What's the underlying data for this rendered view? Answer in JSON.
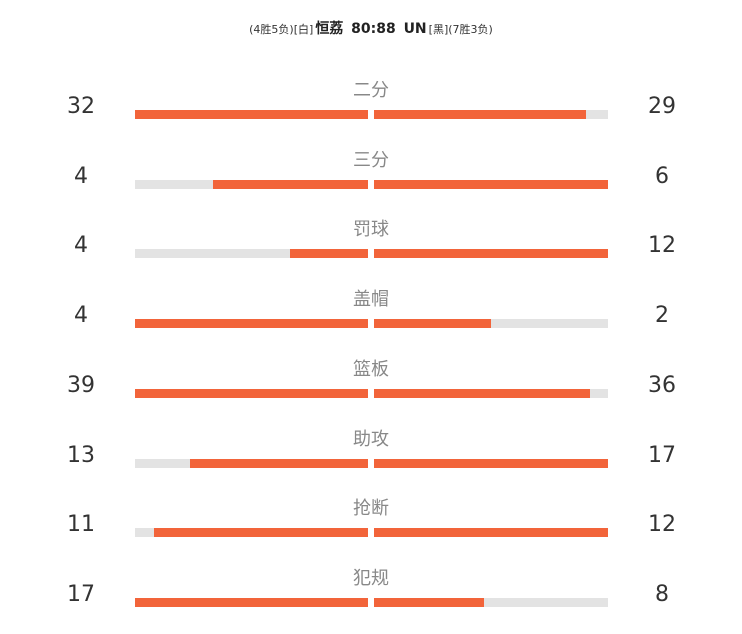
{
  "header": {
    "left_record": "(4胜5负)",
    "left_side": "[白]",
    "left_team": "恒荔",
    "score": "80:88",
    "right_team": "UN",
    "right_side": "[黑]",
    "right_record": "(7胜3负)"
  },
  "colors": {
    "accent": "#f2643a",
    "track": "#e3e3e3",
    "label": "#888888"
  },
  "chart_data": {
    "type": "bar",
    "categories": [
      "二分",
      "三分",
      "罚球",
      "盖帽",
      "篮板",
      "助攻",
      "抢断",
      "犯规"
    ],
    "series": [
      {
        "values": [
          32,
          4,
          4,
          4,
          39,
          13,
          11,
          17
        ]
      },
      {
        "values": [
          29,
          6,
          12,
          2,
          36,
          17,
          12,
          8
        ]
      }
    ]
  }
}
